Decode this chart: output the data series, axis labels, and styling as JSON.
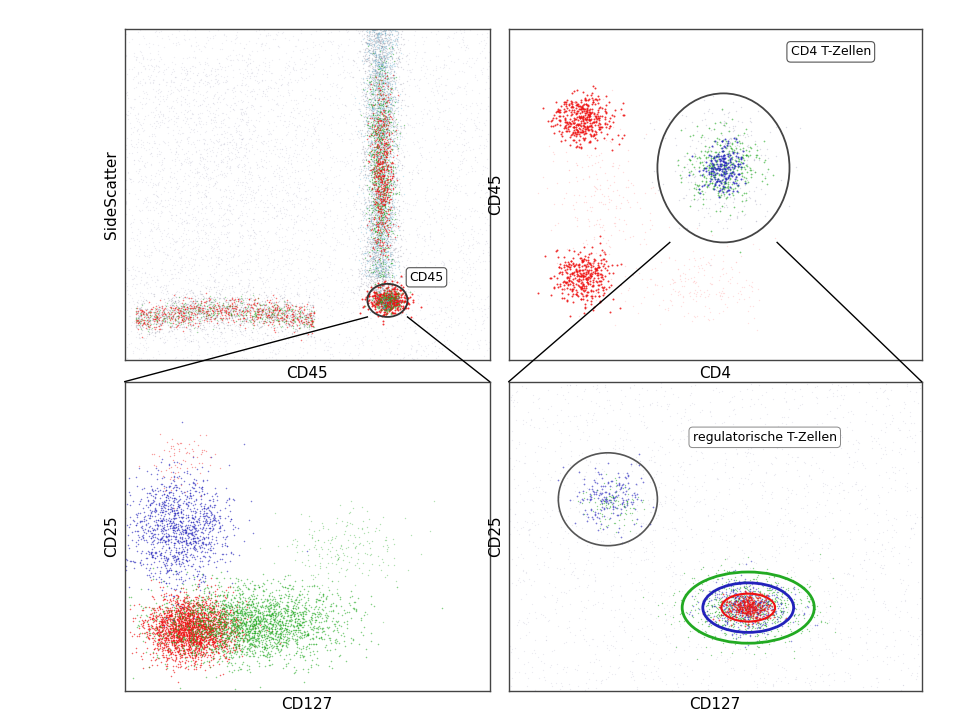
{
  "bg_color": "#ffffff",
  "seed": 42,
  "colors": {
    "gray": "#9999aa",
    "light_gray": "#bbbbcc",
    "red": "#ee1111",
    "green": "#22aa22",
    "blue": "#2222bb",
    "cyan": "#55aacc",
    "light_red": "#ffbbbb",
    "dark_gray": "#666666"
  },
  "labels": {
    "panel1_xlabel": "CD45",
    "panel1_ylabel": "SideScatter",
    "panel1_gate": "CD45",
    "panel2_xlabel": "CD4",
    "panel2_ylabel": "CD45",
    "panel2_title": "CD4 T-Zellen",
    "panel3_xlabel": "CD127",
    "panel3_ylabel": "CD25",
    "panel4_xlabel": "CD127",
    "panel4_ylabel": "CD25",
    "panel4_gate": "regulatorische T-Zellen"
  },
  "font_sizes": {
    "axis_label": 11,
    "gate_label": 9,
    "title": 9
  }
}
